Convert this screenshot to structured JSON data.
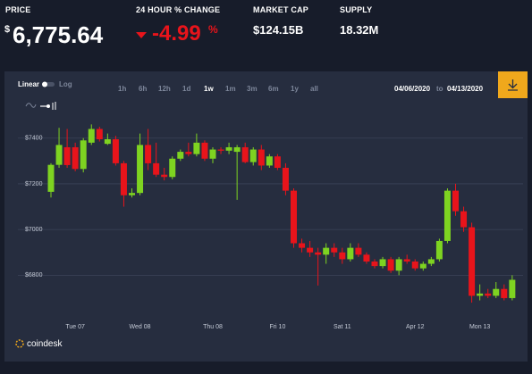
{
  "header": {
    "price_label": "PRICE",
    "currency": "$",
    "price": "6,775.64",
    "change_label": "24 HOUR % CHANGE",
    "change": "-4.99",
    "change_unit": "%",
    "market_cap_label": "MARKET CAP",
    "market_cap": "$124.15B",
    "supply_label": "SUPPLY",
    "supply": "18.32M"
  },
  "toolbar": {
    "linear": "Linear",
    "log": "Log",
    "ranges": [
      "1h",
      "6h",
      "12h",
      "1d",
      "1w",
      "1m",
      "3m",
      "6m",
      "1y",
      "all"
    ],
    "from": "04/06/2020",
    "to_word": "to",
    "to": "04/13/2020"
  },
  "brand": "coindesk",
  "chart_data": {
    "type": "candlestick",
    "up_color": "#7ed321",
    "down_color": "#e8141b",
    "grid": true,
    "categories": [
      null,
      null,
      null,
      "Tue 07",
      null,
      null,
      null,
      null,
      null,
      null,
      null,
      "Wed 08",
      null,
      null,
      null,
      null,
      null,
      null,
      null,
      null,
      "Thu 08",
      null,
      null,
      null,
      null,
      null,
      null,
      null,
      "Fri 10",
      null,
      null,
      null,
      null,
      null,
      null,
      null,
      "Sat 11",
      null,
      null,
      null,
      null,
      null,
      null,
      null,
      null,
      "Apr 12",
      null,
      null,
      null,
      null,
      null,
      null,
      null,
      "Mon 13",
      null,
      null,
      null,
      null
    ],
    "open": [
      7165,
      7283,
      7360,
      7360,
      7265,
      7380,
      7440,
      7375,
      7395,
      7290,
      7150,
      7160,
      7370,
      7290,
      7240,
      7230,
      7310,
      7340,
      7330,
      7380,
      7310,
      7350,
      7345,
      7340,
      7360,
      7295,
      7350,
      7280,
      7320,
      7270,
      7170,
      6940,
      6920,
      6900,
      6890,
      6920,
      6900,
      6870,
      6920,
      6890,
      6860,
      6840,
      6870,
      6820,
      6870,
      6860,
      6830,
      6850,
      6870,
      6950,
      7170,
      7080,
      7010,
      6710,
      6720,
      6710,
      6740,
      6700
    ],
    "high": [
      7290,
      7445,
      7440,
      7380,
      7400,
      7460,
      7450,
      7420,
      7410,
      7300,
      7180,
      7420,
      7440,
      7380,
      7270,
      7320,
      7350,
      7380,
      7420,
      7390,
      7360,
      7360,
      7380,
      7370,
      7380,
      7360,
      7370,
      7330,
      7330,
      7290,
      7180,
      6960,
      6950,
      6920,
      6940,
      6940,
      6920,
      6940,
      6940,
      6900,
      6870,
      6880,
      6880,
      6880,
      6890,
      6870,
      6860,
      6880,
      6960,
      7180,
      7200,
      7100,
      7030,
      6760,
      6740,
      6770,
      6760,
      6800
    ],
    "low": [
      7140,
      7270,
      7270,
      7255,
      7250,
      7370,
      7385,
      7370,
      7280,
      7100,
      7140,
      7150,
      7260,
      7230,
      7215,
      7220,
      7300,
      7320,
      7320,
      7300,
      7290,
      7330,
      7330,
      7130,
      7290,
      7280,
      7260,
      7270,
      7260,
      7150,
      6920,
      6900,
      6880,
      6755,
      6850,
      6880,
      6850,
      6860,
      6880,
      6850,
      6830,
      6830,
      6810,
      6800,
      6850,
      6820,
      6820,
      6840,
      6860,
      6940,
      7060,
      6990,
      6680,
      6690,
      6700,
      6700,
      6690,
      6690
    ],
    "close": [
      7283,
      7370,
      7282,
      7265,
      7390,
      7440,
      7395,
      7395,
      7290,
      7150,
      7160,
      7370,
      7290,
      7240,
      7230,
      7310,
      7340,
      7330,
      7380,
      7310,
      7350,
      7345,
      7360,
      7360,
      7295,
      7350,
      7280,
      7320,
      7270,
      7170,
      6940,
      6920,
      6900,
      6890,
      6920,
      6900,
      6870,
      6920,
      6890,
      6860,
      6840,
      6870,
      6820,
      6870,
      6860,
      6830,
      6850,
      6870,
      6950,
      7170,
      7080,
      7010,
      6710,
      6720,
      6710,
      6740,
      6700,
      6780
    ],
    "ylim": [
      6610,
      7520
    ],
    "yticks": [
      {
        "value": 6800,
        "label": "$6800"
      },
      {
        "value": 7000,
        "label": "$7000"
      },
      {
        "value": 7200,
        "label": "$7200"
      },
      {
        "value": 7400,
        "label": "$7400"
      }
    ]
  }
}
